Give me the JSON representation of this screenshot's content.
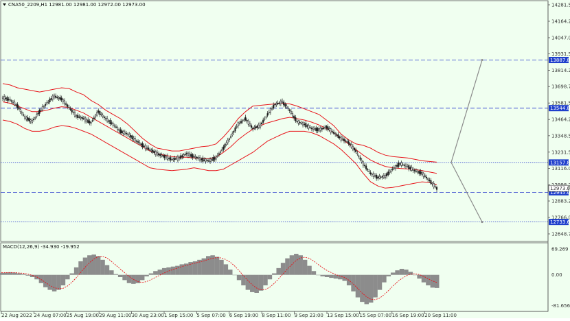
{
  "header": {
    "symbol_line": "CNA50_2209,H1  12981.00 12981.00 12972.00 12973.00",
    "menu_icon": "triangle-down-icon"
  },
  "price_axis": {
    "ticks": [
      "14281.50",
      "14164.25",
      "14047.00",
      "13931.50",
      "13814.25",
      "13698.75",
      "13581.50",
      "13464.25",
      "13348.50",
      "13231.50",
      "13116.00",
      "12998.75",
      "12883.25",
      "12766.00",
      "12648.75"
    ],
    "tick_values": [
      14281.5,
      14164.25,
      14047.0,
      13931.5,
      13814.25,
      13698.75,
      13581.5,
      13464.25,
      13348.5,
      13231.5,
      13116.0,
      12998.75,
      12883.25,
      12766.0,
      12648.75
    ],
    "ylim": [
      12600,
      14300
    ],
    "current_price": "12973.00",
    "level_labels": [
      "13887.88",
      "13544.84",
      "13157.84",
      "12945.04",
      "12733.68"
    ],
    "level_values": [
      13887.88,
      13544.84,
      13157.84,
      12945.04,
      12733.68
    ]
  },
  "time_axis": {
    "labels": [
      "22 Aug 2022",
      "24 Aug 07:00",
      "25 Aug 19:00",
      "29 Aug 11:00",
      "30 Aug 23:00",
      "1 Sep 15:00",
      "5 Sep 07:00",
      "6 Sep 19:00",
      "8 Sep 11:00",
      "9 Sep 23:00",
      "13 Sep 15:00",
      "15 Sep 07:00",
      "16 Sep 19:00",
      "20 Sep 11:00"
    ]
  },
  "macd": {
    "label": "MACD(12,26,9) -34.930 -19.952",
    "ticks": [
      "69.269",
      "0.00",
      "-81.656"
    ],
    "tick_values": [
      69.269,
      0,
      -81.656
    ],
    "ylim": [
      -90,
      78
    ]
  },
  "colors": {
    "background": "#F0FFF0",
    "band": "#E8141A",
    "level_line": "#2233CC",
    "level_label_bg": "#1F3FCC",
    "current_label_bg": "#FFFFFF",
    "projection": "#8A8A8A",
    "candle": "#1E1E1E",
    "macd_hist": "#8C8C8C",
    "macd_signal": "#E8141A"
  },
  "chart_data": [
    {
      "type": "line",
      "title": "CNA50_2209,H1",
      "series": [
        {
          "name": "close",
          "values": [
            13620,
            13605,
            13560,
            13480,
            13450,
            13520,
            13580,
            13630,
            13610,
            13550,
            13490,
            13470,
            13440,
            13520,
            13470,
            13430,
            13380,
            13360,
            13320,
            13280,
            13250,
            13220,
            13200,
            13180,
            13190,
            13220,
            13200,
            13180,
            13170,
            13190,
            13260,
            13340,
            13430,
            13470,
            13400,
            13420,
            13500,
            13570,
            13590,
            13530,
            13450,
            13430,
            13400,
            13390,
            13410,
            13370,
            13330,
            13300,
            13240,
            13150,
            13080,
            13050,
            13060,
            13110,
            13150,
            13130,
            13100,
            13080,
            13030,
            12973
          ]
        },
        {
          "name": "upper band",
          "values": [
            13720,
            13710,
            13690,
            13680,
            13670,
            13660,
            13670,
            13680,
            13690,
            13685,
            13660,
            13640,
            13600,
            13570,
            13530,
            13500,
            13470,
            13430,
            13380,
            13330,
            13290,
            13260,
            13250,
            13240,
            13240,
            13250,
            13260,
            13270,
            13275,
            13290,
            13340,
            13400,
            13470,
            13520,
            13560,
            13565,
            13570,
            13575,
            13580,
            13575,
            13560,
            13540,
            13520,
            13500,
            13460,
            13420,
            13360,
            13320,
            13290,
            13280,
            13260,
            13230,
            13210,
            13200,
            13195,
            13190,
            13180,
            13170,
            13165,
            13160
          ]
        },
        {
          "name": "middle band",
          "values": [
            13590,
            13580,
            13560,
            13540,
            13520,
            13520,
            13530,
            13545,
            13555,
            13550,
            13530,
            13510,
            13480,
            13450,
            13420,
            13390,
            13360,
            13330,
            13300,
            13270,
            13240,
            13220,
            13210,
            13200,
            13195,
            13195,
            13190,
            13185,
            13185,
            13195,
            13230,
            13270,
            13320,
            13360,
            13395,
            13420,
            13440,
            13455,
            13470,
            13480,
            13470,
            13460,
            13445,
            13425,
            13400,
            13370,
            13330,
            13290,
            13250,
            13210,
            13175,
            13150,
            13130,
            13120,
            13115,
            13112,
            13108,
            13100,
            13090,
            13080
          ]
        },
        {
          "name": "lower band",
          "values": [
            13460,
            13450,
            13430,
            13400,
            13380,
            13380,
            13390,
            13410,
            13420,
            13415,
            13400,
            13380,
            13360,
            13330,
            13300,
            13270,
            13240,
            13210,
            13180,
            13150,
            13120,
            13110,
            13105,
            13100,
            13105,
            13110,
            13120,
            13110,
            13100,
            13100,
            13110,
            13140,
            13170,
            13200,
            13230,
            13270,
            13310,
            13335,
            13360,
            13380,
            13380,
            13380,
            13370,
            13350,
            13320,
            13290,
            13250,
            13200,
            13150,
            13080,
            13020,
            12990,
            12975,
            12980,
            12990,
            13000,
            13010,
            13020,
            13015,
            13000
          ]
        }
      ],
      "levels": [
        13887.88,
        13544.84,
        13157.84,
        12945.04,
        12733.68
      ],
      "projection": [
        [
          13157.84,
          13887.88
        ],
        [
          13157.84,
          12733.68
        ]
      ],
      "ylim": [
        12600,
        14300
      ]
    },
    {
      "type": "bar",
      "title": "MACD(12,26,9) -34.930 -19.952",
      "series": [
        {
          "name": "histogram",
          "values": [
            5,
            6,
            7,
            6,
            4,
            2,
            -2,
            -6,
            -12,
            -22,
            -33,
            -40,
            -44,
            -40,
            -28,
            -12,
            4,
            20,
            36,
            46,
            52,
            54,
            50,
            40,
            26,
            12,
            2,
            -6,
            -14,
            -22,
            -24,
            -22,
            -14,
            -4,
            4,
            10,
            14,
            18,
            20,
            22,
            24,
            28,
            30,
            34,
            36,
            40,
            44,
            50,
            52,
            48,
            40,
            28,
            14,
            0,
            -14,
            -28,
            -40,
            -46,
            -48,
            -42,
            -28,
            -12,
            4,
            18,
            32,
            44,
            52,
            56,
            52,
            40,
            24,
            10,
            0,
            -4,
            -6,
            -8,
            -10,
            -12,
            -16,
            -28,
            -44,
            -60,
            -72,
            -78,
            -74,
            -60,
            -40,
            -20,
            -4,
            6,
            12,
            16,
            14,
            8,
            0,
            -10,
            -20,
            -28,
            -34,
            -35
          ]
        },
        {
          "name": "signal",
          "values": [
            6,
            6,
            6,
            6,
            5,
            4,
            2,
            -1,
            -5,
            -12,
            -20,
            -28,
            -34,
            -37,
            -36,
            -30,
            -20,
            -8,
            6,
            20,
            32,
            42,
            48,
            49,
            45,
            36,
            26,
            16,
            6,
            -4,
            -12,
            -18,
            -20,
            -18,
            -13,
            -7,
            -1,
            5,
            10,
            14,
            18,
            22,
            25,
            28,
            31,
            34,
            37,
            41,
            44,
            46,
            45,
            41,
            34,
            24,
            12,
            -2,
            -14,
            -26,
            -35,
            -40,
            -39,
            -33,
            -23,
            -11,
            2,
            15,
            27,
            38,
            45,
            47,
            44,
            37,
            28,
            19,
            12,
            6,
            1,
            -3,
            -7,
            -14,
            -24,
            -36,
            -48,
            -58,
            -65,
            -66,
            -62,
            -53,
            -42,
            -30,
            -19,
            -10,
            -3,
            2,
            3,
            1,
            -4,
            -10,
            -16,
            -20
          ]
        }
      ],
      "ylim": [
        -90,
        78
      ]
    }
  ]
}
